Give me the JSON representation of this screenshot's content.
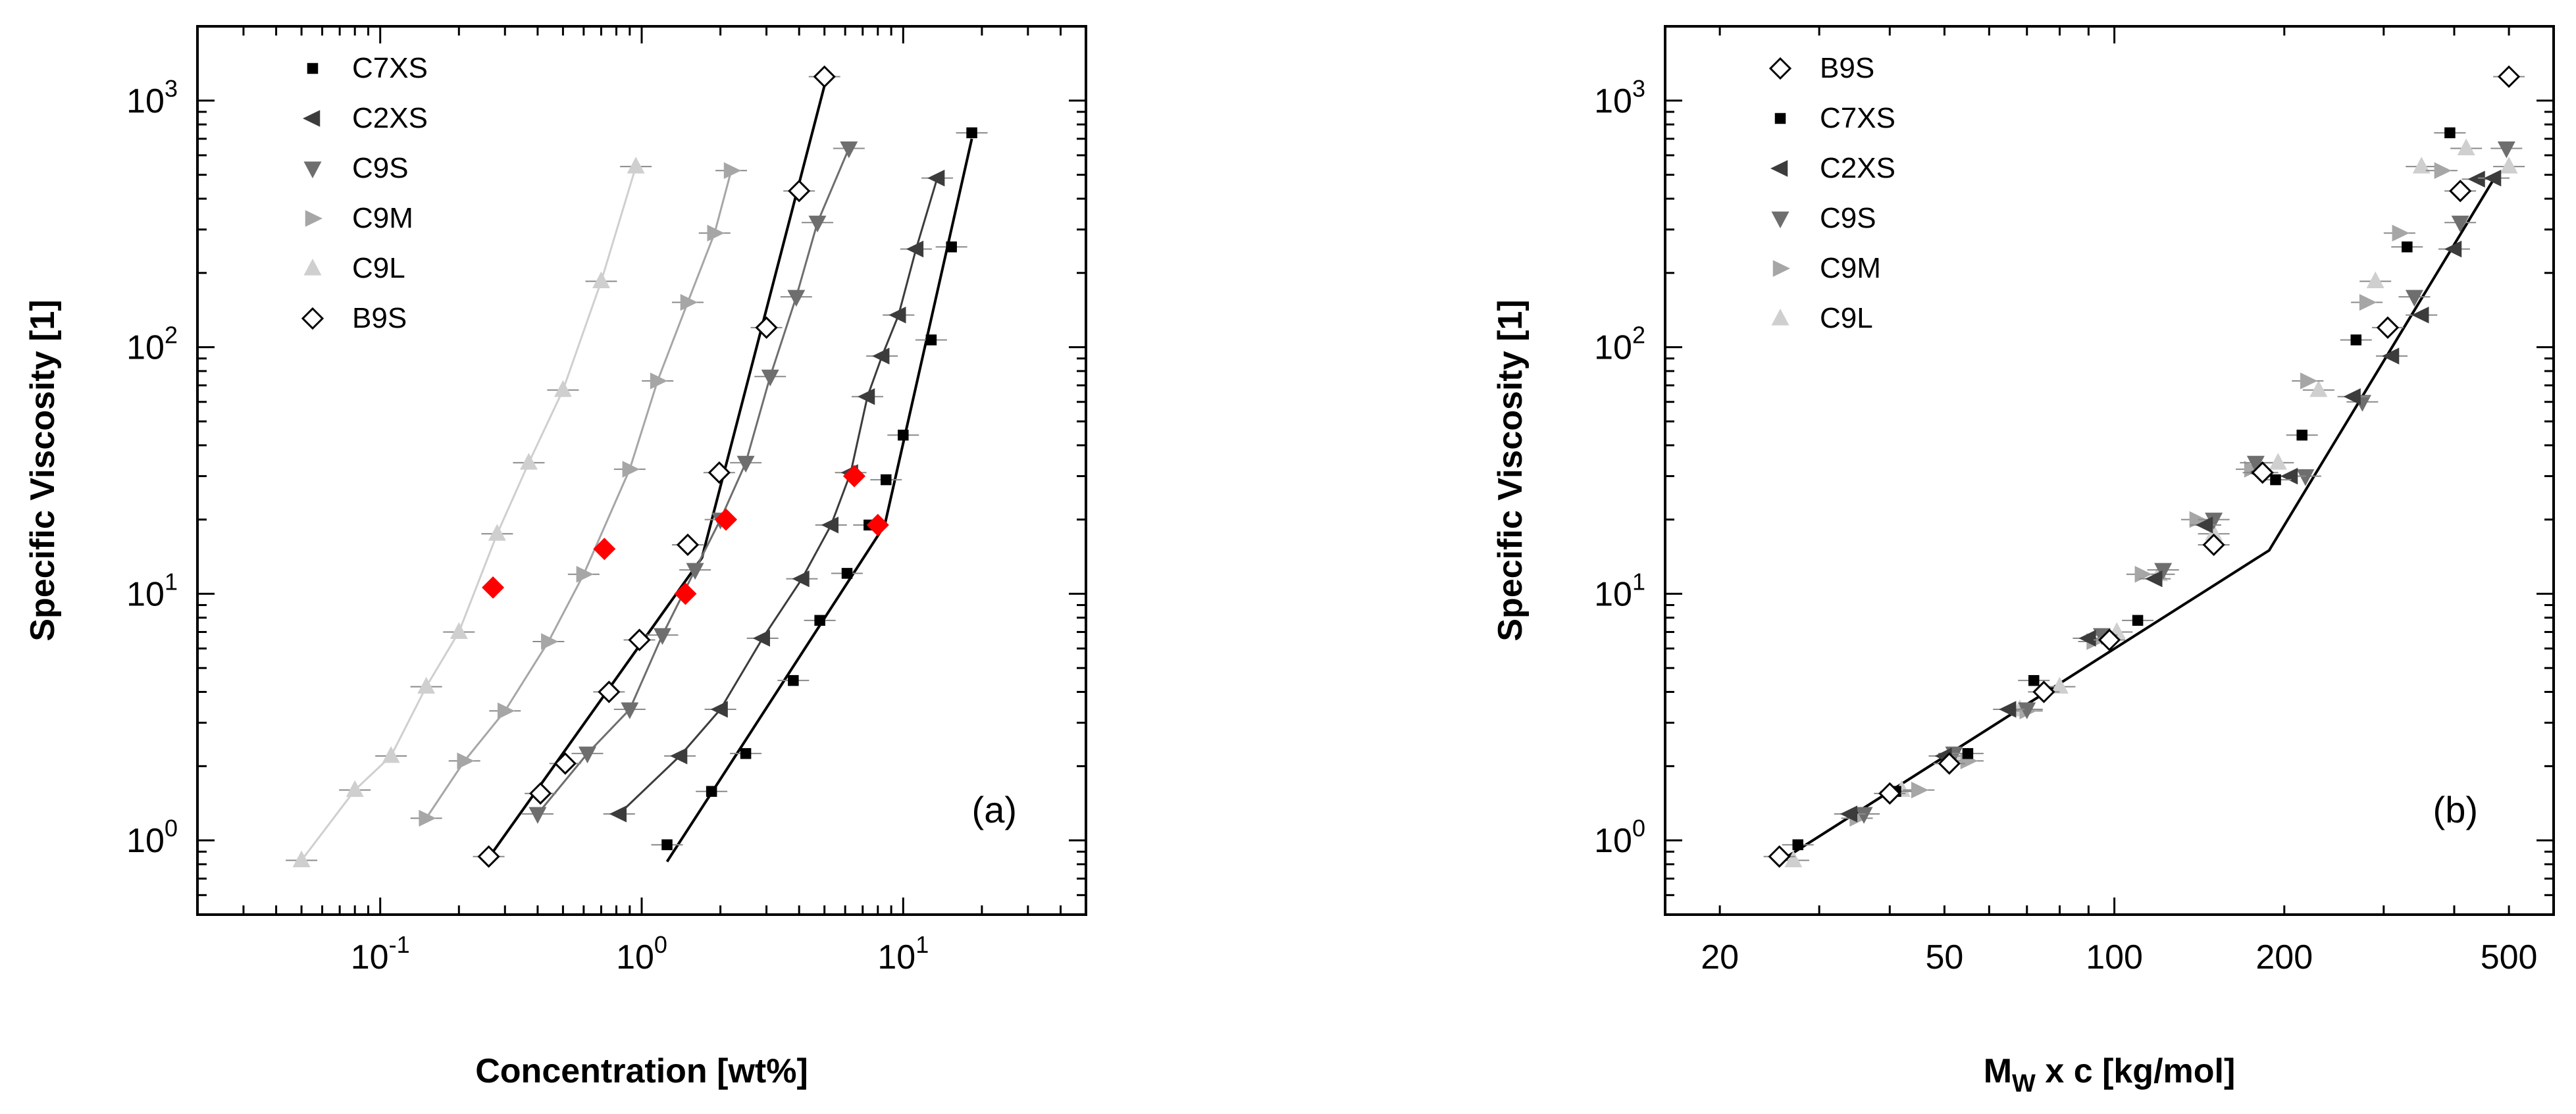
{
  "colors": {
    "C7XS": "#000000",
    "C2XS": "#3c3c3c",
    "C9S": "#6e6e6e",
    "C9M": "#a6a6a6",
    "C9L": "#cfcfcf",
    "B9S": "#000000",
    "overlap": "#ff0000",
    "fit": "#000000",
    "errorbar": "#8a8a8a"
  },
  "chart_data": [
    {
      "type": "scatter",
      "panel_label": "(a)",
      "xlabel": "Concentration [wt%]",
      "ylabel": "Specific Viscosity [1]",
      "xscale": "log",
      "yscale": "log",
      "xlim": [
        0.02,
        50
      ],
      "ylim": [
        0.5,
        2000
      ],
      "x_ticks": [
        {
          "value": 0.1,
          "base": "10",
          "exp": "-1"
        },
        {
          "value": 1,
          "base": "10",
          "exp": "0"
        },
        {
          "value": 10,
          "base": "10",
          "exp": "1"
        }
      ],
      "y_ticks": [
        {
          "value": 1,
          "base": "10",
          "exp": "0"
        },
        {
          "value": 10,
          "base": "10",
          "exp": "1"
        },
        {
          "value": 100,
          "base": "10",
          "exp": "2"
        },
        {
          "value": 1000,
          "base": "10",
          "exp": "3"
        }
      ],
      "legend_position": "top-left",
      "legend": [
        "C7XS",
        "C2XS",
        "C9S",
        "C9M",
        "C9L",
        "B9S"
      ],
      "series": [
        {
          "name": "C7XS",
          "marker": "square",
          "connect": false,
          "x": [
            1.25,
            1.85,
            2.5,
            3.8,
            4.8,
            6.1,
            7.4,
            8.6,
            10,
            12.8,
            15.3,
            18.3
          ],
          "y": [
            0.96,
            1.58,
            2.25,
            4.45,
            7.8,
            12.1,
            19,
            29,
            44,
            107,
            255,
            740
          ]
        },
        {
          "name": "C2XS",
          "marker": "triangle-left",
          "connect": true,
          "x": [
            0.82,
            1.4,
            2.0,
            2.9,
            4.1,
            5.3,
            6.3,
            7.3,
            8.3,
            9.6,
            11.2,
            13.5
          ],
          "y": [
            1.28,
            2.2,
            3.4,
            6.6,
            11.5,
            19,
            31,
            63,
            92,
            135,
            250,
            485
          ]
        },
        {
          "name": "C9S",
          "marker": "triangle-down",
          "connect": true,
          "x": [
            0.4,
            0.62,
            0.9,
            1.2,
            1.6,
            2.0,
            2.5,
            3.1,
            3.9,
            4.7,
            6.2
          ],
          "y": [
            1.28,
            2.25,
            3.4,
            6.8,
            12.5,
            20,
            34,
            76,
            160,
            320,
            640
          ]
        },
        {
          "name": "C9M",
          "marker": "triangle-right",
          "connect": true,
          "x": [
            0.15,
            0.21,
            0.3,
            0.44,
            0.6,
            0.9,
            1.15,
            1.5,
            1.9,
            2.2
          ],
          "y": [
            1.23,
            2.1,
            3.35,
            6.4,
            12,
            32,
            73,
            152,
            290,
            520
          ]
        },
        {
          "name": "C9L",
          "marker": "triangle-up",
          "connect": true,
          "x": [
            0.05,
            0.08,
            0.11,
            0.15,
            0.2,
            0.28,
            0.37,
            0.5,
            0.7,
            0.95
          ],
          "y": [
            0.83,
            1.6,
            2.2,
            4.2,
            7,
            17.5,
            34,
            67,
            185,
            540
          ]
        },
        {
          "name": "B9S",
          "marker": "diamond-open",
          "connect": false,
          "x": [
            0.26,
            0.41,
            0.51,
            0.75,
            0.98,
            1.5,
            1.98,
            3.0,
            4.0,
            5.0
          ],
          "y": [
            0.86,
            1.55,
            2.05,
            4,
            6.5,
            15.8,
            31,
            120,
            430,
            1250
          ]
        }
      ],
      "overlap_points": {
        "marker": "diamond-filled",
        "x": [
          0.27,
          0.72,
          1.47,
          2.1,
          6.5,
          8.0
        ],
        "y": [
          10.6,
          15.2,
          10,
          20,
          30,
          19
        ]
      },
      "fit_lines": [
        {
          "x": [
            1.25,
            8.5,
            18.3
          ],
          "y": [
            0.82,
            19,
            700
          ]
        },
        {
          "x": [
            0.26,
            1.7,
            5.0
          ],
          "y": [
            0.85,
            14,
            1150
          ]
        }
      ]
    },
    {
      "type": "scatter",
      "panel_label": "(b)",
      "xlabel_main": "M",
      "xlabel_sub": "W",
      "xlabel_rest": " x c [kg/mol]",
      "ylabel": "Specific Viscosity [1]",
      "xscale": "log",
      "yscale": "log",
      "xlim": [
        16,
        600
      ],
      "ylim": [
        0.5,
        2000
      ],
      "x_ticks": [
        {
          "value": 20,
          "label": "20"
        },
        {
          "value": 50,
          "label": "50"
        },
        {
          "value": 100,
          "label": "100"
        },
        {
          "value": 200,
          "label": "200"
        },
        {
          "value": 500,
          "label": "500"
        }
      ],
      "y_ticks": [
        {
          "value": 1,
          "base": "10",
          "exp": "0"
        },
        {
          "value": 10,
          "base": "10",
          "exp": "1"
        },
        {
          "value": 100,
          "base": "10",
          "exp": "2"
        },
        {
          "value": 1000,
          "base": "10",
          "exp": "3"
        }
      ],
      "legend_position": "top-left",
      "legend": [
        "B9S",
        "C7XS",
        "C2XS",
        "C9S",
        "C9M",
        "C9L"
      ],
      "series": [
        {
          "name": "C9L",
          "marker": "triangle-up",
          "x": [
            27,
            42,
            52,
            68,
            80,
            101,
            120,
            150,
            195,
            230,
            290,
            350,
            420,
            500
          ],
          "y": [
            0.83,
            1.6,
            2.2,
            3.4,
            4.2,
            7,
            12,
            17.5,
            34,
            67,
            185,
            540,
            640,
            540
          ]
        },
        {
          "name": "C9M",
          "marker": "triangle-right",
          "x": [
            35,
            45,
            55,
            70,
            92,
            112,
            140,
            175,
            220,
            280,
            320,
            380
          ],
          "y": [
            1.23,
            1.6,
            2.1,
            3.35,
            6.4,
            12,
            20,
            32,
            73,
            152,
            290,
            520
          ]
        },
        {
          "name": "C9S",
          "marker": "triangle-down",
          "x": [
            36,
            52,
            70,
            95,
            122,
            150,
            178,
            218,
            275,
            340,
            410,
            495
          ],
          "y": [
            1.28,
            2.25,
            3.4,
            6.8,
            12.5,
            20,
            34,
            30,
            60,
            160,
            320,
            640
          ]
        },
        {
          "name": "C2XS",
          "marker": "triangle-left",
          "x": [
            34,
            50,
            65,
            90,
            118,
            145,
            180,
            205,
            265,
            310,
            350,
            400,
            440,
            470
          ],
          "y": [
            1.28,
            2.2,
            3.4,
            6.6,
            11.5,
            19,
            31,
            30,
            63,
            92,
            135,
            250,
            480,
            485
          ]
        },
        {
          "name": "C7XS",
          "marker": "square",
          "x": [
            27.5,
            41,
            55,
            72,
            110,
            193,
            215,
            268,
            330,
            393
          ],
          "y": [
            0.96,
            1.58,
            2.25,
            4.45,
            7.8,
            29,
            44,
            107,
            255,
            740
          ]
        },
        {
          "name": "B9S",
          "marker": "diamond-open",
          "x": [
            25.5,
            40,
            51,
            75,
            98,
            150,
            183,
            305,
            410,
            500
          ],
          "y": [
            0.86,
            1.55,
            2.05,
            4,
            6.5,
            15.8,
            31,
            120,
            430,
            1250
          ]
        }
      ],
      "fit_lines": [
        {
          "x": [
            25.5,
            188,
            470
          ],
          "y": [
            0.82,
            15,
            480
          ]
        }
      ]
    }
  ]
}
